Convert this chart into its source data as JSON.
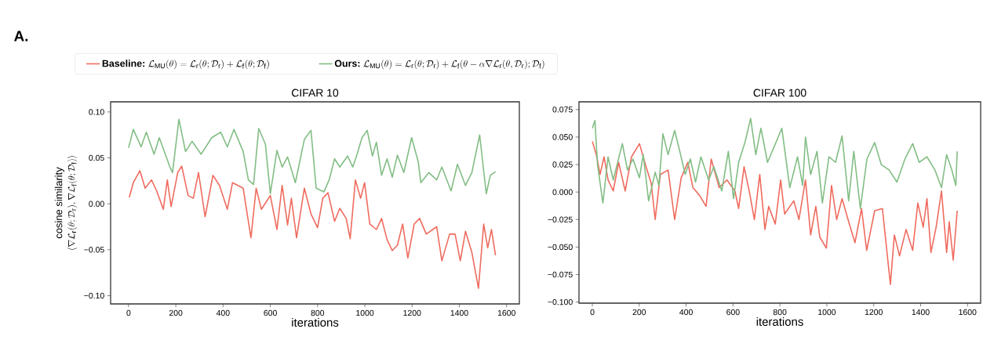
{
  "chart_data": [
    {
      "type": "line",
      "title": "CIFAR 10",
      "xlabel": "iterations",
      "ylabel": "\\begin{array}{c}\\mbox{cosine similarity}\\\\ \\langle\\nabla\\mathcal{L}_{\\mathrm{r}}(\\theta;\\mathcal{D}_{\\mathrm{r}}),\\nabla\\mathcal{L}_{\\mathrm{f}}(\\theta;\\mathcal{D}_{\\mathrm{f}})\\rangle\\end{array}",
      "annotations": [
        "A."
      ],
      "legend": "top",
      "xlim": [
        -76,
        1654
      ],
      "ylim": [
        -0.109,
        0.111
      ],
      "xticks": [
        0,
        200,
        400,
        600,
        800,
        1000,
        1200,
        1400,
        1600
      ],
      "yticks": [
        {
          "value": -0.1,
          "label": "−0.10"
        },
        {
          "value": -0.05,
          "label": "−0.05"
        },
        {
          "value": 0,
          "label": "0.00"
        },
        {
          "value": 0.05,
          "label": "0.05"
        },
        {
          "value": 0.1,
          "label": "0.10"
        }
      ],
      "series": [
        {
          "name": "\\textbf{Baseline:}\\ \\mathcal{L}_{\\mathrm{MU}}(\\theta)=\\mathcal{L}_{\\mathrm{r}}(\\theta;\\mathcal{D}_{\\mathrm{r}})+\\mathcal{L}_{\\mathrm{f}}(\\theta;\\mathcal{D}_{\\mathrm{f}})",
          "color": "#ef6b5e",
          "x": [
            3,
            20,
            48,
            70,
            97,
            119,
            147,
            164,
            180,
            208,
            225,
            252,
            274,
            296,
            324,
            357,
            385,
            418,
            440,
            485,
            518,
            540,
            562,
            600,
            628,
            650,
            673,
            689,
            711,
            744,
            772,
            800,
            822,
            844,
            872,
            894,
            921,
            938,
            960,
            982,
            999,
            1021,
            1049,
            1071,
            1094,
            1116,
            1138,
            1160,
            1182,
            1209,
            1232,
            1260,
            1304,
            1326,
            1359,
            1382,
            1404,
            1426,
            1453,
            1481,
            1503,
            1520,
            1536,
            1553
          ],
          "values": [
            0.007,
            0.023,
            0.036,
            0.017,
            0.026,
            0.014,
            -0.006,
            0.026,
            -0.003,
            0.034,
            0.041,
            0.009,
            0.006,
            0.034,
            -0.014,
            0.031,
            0.02,
            -0.006,
            0.023,
            0.017,
            -0.037,
            0.017,
            -0.006,
            0.009,
            -0.028,
            0.02,
            -0.023,
            0.006,
            -0.037,
            0.017,
            -0.011,
            -0.026,
            0.006,
            0.012,
            -0.019,
            -0.005,
            -0.016,
            -0.038,
            0.026,
            0.006,
            0.023,
            -0.022,
            -0.028,
            -0.016,
            -0.039,
            -0.051,
            -0.045,
            -0.022,
            -0.059,
            -0.022,
            -0.016,
            -0.033,
            -0.025,
            -0.062,
            -0.033,
            -0.033,
            -0.062,
            -0.03,
            -0.053,
            -0.092,
            -0.022,
            -0.048,
            -0.028,
            -0.056
          ]
        },
        {
          "name": "\\textbf{Ours:}\\ \\mathcal{L}_{\\mathrm{MU}}(\\theta)=\\mathcal{L}_{\\mathrm{r}}(\\theta;\\mathcal{D}_{\\mathrm{r}})+\\mathcal{L}_{\\mathrm{f}}(\\theta-\\alpha\\nabla\\mathcal{L}_{\\mathrm{r}}(\\theta,\\mathcal{D}_{\\mathrm{r}});\\mathcal{D}_{\\mathrm{f}})",
          "color": "#82bd84",
          "x": [
            0,
            20,
            53,
            75,
            108,
            130,
            175,
            186,
            213,
            241,
            269,
            307,
            352,
            390,
            418,
            446,
            485,
            507,
            529,
            551,
            579,
            600,
            628,
            650,
            673,
            706,
            744,
            772,
            794,
            827,
            849,
            872,
            894,
            927,
            949,
            966,
            988,
            1010,
            1032,
            1049,
            1071,
            1094,
            1116,
            1138,
            1165,
            1198,
            1226,
            1237,
            1271,
            1304,
            1326,
            1365,
            1392,
            1426,
            1453,
            1486,
            1514,
            1531,
            1553
          ],
          "values": [
            0.061,
            0.081,
            0.062,
            0.078,
            0.054,
            0.072,
            0.04,
            0.034,
            0.092,
            0.057,
            0.068,
            0.054,
            0.072,
            0.078,
            0.062,
            0.081,
            0.057,
            0.026,
            0.021,
            0.082,
            0.065,
            0.011,
            0.058,
            0.04,
            0.051,
            0.023,
            0.07,
            0.08,
            0.017,
            0.013,
            0.026,
            0.049,
            0.04,
            0.052,
            0.04,
            0.053,
            0.072,
            0.08,
            0.052,
            0.067,
            0.031,
            0.049,
            0.029,
            0.053,
            0.034,
            0.072,
            0.046,
            0.023,
            0.034,
            0.026,
            0.04,
            0.014,
            0.043,
            0.02,
            0.034,
            0.075,
            0.011,
            0.031,
            0.035
          ]
        }
      ]
    },
    {
      "type": "line",
      "title": "CIFAR 100",
      "xlabel": "iterations",
      "xlim": [
        -57,
        1656
      ],
      "ylim": [
        -0.101,
        0.082
      ],
      "xticks": [
        0,
        200,
        400,
        600,
        800,
        1000,
        1200,
        1400,
        1600
      ],
      "yticks": [
        {
          "value": -0.1,
          "label": "−0.100"
        },
        {
          "value": -0.075,
          "label": "−0.075"
        },
        {
          "value": -0.05,
          "label": "−0.050"
        },
        {
          "value": -0.025,
          "label": "−0.025"
        },
        {
          "value": 0,
          "label": "0.000"
        },
        {
          "value": 0.025,
          "label": "0.025"
        },
        {
          "value": 0.05,
          "label": "0.050"
        },
        {
          "value": 0.075,
          "label": "0.075"
        }
      ],
      "series": [
        {
          "color": "#ef6b5e",
          "x": [
            0,
            17,
            33,
            50,
            67,
            89,
            112,
            140,
            167,
            201,
            229,
            251,
            268,
            290,
            323,
            351,
            379,
            407,
            429,
            457,
            485,
            507,
            541,
            574,
            608,
            624,
            647,
            669,
            691,
            714,
            736,
            752,
            780,
            803,
            820,
            859,
            881,
            909,
            931,
            953,
            970,
            998,
            1020,
            1042,
            1065,
            1093,
            1120,
            1148,
            1170,
            1204,
            1237,
            1271,
            1288,
            1310,
            1338,
            1366,
            1388,
            1411,
            1427,
            1444,
            1466,
            1489,
            1511,
            1522,
            1539,
            1556
          ],
          "values": [
            0.046,
            0.034,
            0.016,
            0.032,
            0.011,
            0.001,
            0.027,
            0.001,
            0.032,
            0.044,
            0.023,
            0.008,
            -0.025,
            0.016,
            0.02,
            -0.025,
            0.013,
            0.027,
            0.004,
            -0.003,
            -0.013,
            0.03,
            0.004,
            0.011,
            0.001,
            -0.015,
            0.023,
            0.001,
            -0.025,
            0.016,
            -0.034,
            -0.013,
            -0.029,
            0.011,
            -0.02,
            -0.008,
            -0.025,
            0.011,
            -0.039,
            -0.013,
            -0.041,
            -0.051,
            0.006,
            -0.025,
            -0.006,
            -0.027,
            -0.046,
            -0.015,
            -0.053,
            -0.017,
            -0.015,
            -0.084,
            -0.039,
            -0.058,
            -0.034,
            -0.053,
            -0.01,
            -0.032,
            -0.006,
            -0.055,
            -0.032,
            0.001,
            -0.055,
            -0.027,
            -0.062,
            -0.017
          ]
        },
        {
          "color": "#82bd84",
          "x": [
            0,
            11,
            22,
            45,
            67,
            89,
            128,
            150,
            173,
            201,
            217,
            240,
            268,
            284,
            301,
            323,
            351,
            373,
            396,
            418,
            440,
            463,
            496,
            518,
            552,
            580,
            602,
            624,
            652,
            675,
            697,
            719,
            747,
            775,
            808,
            842,
            875,
            897,
            909,
            931,
            958,
            981,
            1009,
            1037,
            1065,
            1093,
            1115,
            1143,
            1171,
            1204,
            1232,
            1266,
            1299,
            1333,
            1366,
            1394,
            1427,
            1461,
            1489,
            1511,
            1533,
            1550,
            1556
          ],
          "values": [
            0.058,
            0.065,
            0.025,
            -0.01,
            0.032,
            0.011,
            0.044,
            0.02,
            0.03,
            0.013,
            0.034,
            -0.008,
            0.018,
            0.006,
            0.053,
            0.034,
            0.056,
            0.037,
            0.016,
            0.03,
            0.009,
            0.032,
            0.011,
            0.023,
            0.001,
            0.037,
            -0.006,
            0.027,
            0.046,
            0.067,
            0.034,
            0.058,
            0.027,
            0.041,
            0.058,
            0.004,
            0.032,
            0.006,
            0.05,
            0.016,
            0.037,
            -0.01,
            0.032,
            0.027,
            0.051,
            -0.008,
            0.037,
            -0.015,
            0.03,
            0.045,
            0.025,
            0.02,
            0.009,
            0.03,
            0.044,
            0.027,
            0.032,
            0.02,
            0.004,
            0.034,
            0.02,
            0.006,
            0.037
          ]
        }
      ]
    }
  ]
}
